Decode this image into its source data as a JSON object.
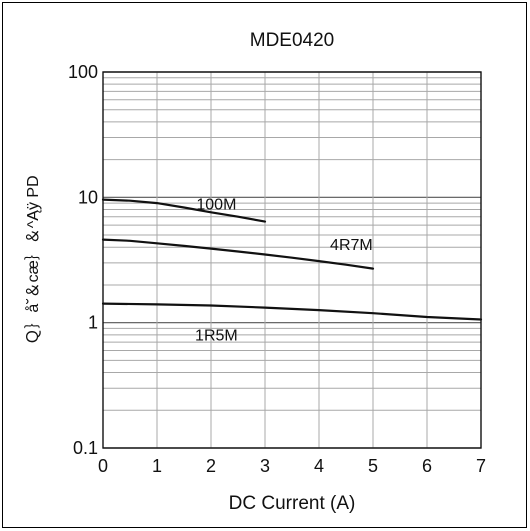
{
  "chart_data": {
    "type": "line",
    "title": "MDE0420",
    "xlabel": "DC Current (A)",
    "ylabel": "Ｑ｝å˘＆cæ｝＆^Ąÿ  PD",
    "x_scale": "linear",
    "y_scale": "log",
    "xlim": [
      0,
      7
    ],
    "ylim": [
      0.1,
      100
    ],
    "x_ticks": [
      "0",
      "1",
      "2",
      "3",
      "4",
      "5",
      "6",
      "7"
    ],
    "y_ticks": [
      "0.1",
      "1",
      "10",
      "100"
    ],
    "grid": true,
    "series": [
      {
        "name": "100M",
        "x": [
          0,
          0.5,
          1,
          1.5,
          2,
          2.5,
          3
        ],
        "y": [
          9.6,
          9.4,
          9.0,
          8.3,
          7.6,
          7.0,
          6.4
        ]
      },
      {
        "name": "4R7M",
        "x": [
          0,
          0.5,
          1,
          1.5,
          2,
          2.5,
          3,
          3.5,
          4,
          4.5,
          5
        ],
        "y": [
          4.6,
          4.5,
          4.3,
          4.1,
          3.9,
          3.7,
          3.5,
          3.3,
          3.1,
          2.9,
          2.7
        ]
      },
      {
        "name": "1R5M",
        "x": [
          0,
          1,
          2,
          3,
          4,
          5,
          6,
          7
        ],
        "y": [
          1.42,
          1.4,
          1.37,
          1.32,
          1.26,
          1.19,
          1.11,
          1.06
        ]
      }
    ]
  }
}
